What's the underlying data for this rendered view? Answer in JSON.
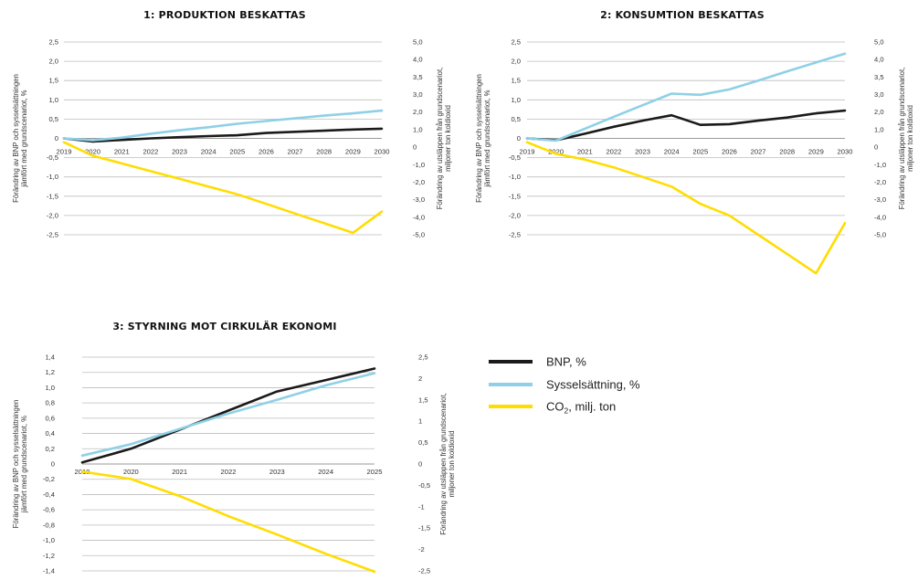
{
  "legend": [
    {
      "key": "bnp",
      "label": "BNP, %",
      "color": "#1a1a1a"
    },
    {
      "key": "syss",
      "label": "Sysselsättning, %",
      "color": "#8fd0e6"
    },
    {
      "key": "co2",
      "label_main": "CO",
      "label_sub": "2",
      "label_rest": ", milj. ton",
      "color": "#ffdd00"
    }
  ],
  "chart_data": [
    {
      "type": "line",
      "title": "1: PRODUKTION BESKATTAS",
      "ylabel_left": [
        "Förändring av BNP och sysselsättningen",
        "jämfört med grundscenariot, %"
      ],
      "ylabel_right": [
        "Förändring av utsläppen från grundscenariot,",
        "miljoner ton koldioxid"
      ],
      "x": [
        "2019",
        "2020",
        "2021",
        "2022",
        "2023",
        "2024",
        "2025",
        "2026",
        "2027",
        "2028",
        "2029",
        "2030"
      ],
      "left_ticks": [
        "2,5",
        "2,0",
        "1,5",
        "1,0",
        "0,5",
        "0",
        "-0,5",
        "-1,0",
        "-1,5",
        "-2,0",
        "-2,5"
      ],
      "right_ticks": [
        "5,0",
        "4,0",
        "3,5",
        "3,0",
        "2,0",
        "1,0",
        "0",
        "-1,0",
        "-2,0",
        "-3,0",
        "-4,0",
        "-5,0"
      ],
      "ylim_left": [
        -2.5,
        2.5
      ],
      "ylim_right": [
        -5,
        5
      ],
      "series": [
        {
          "key": "bnp",
          "axis": "left",
          "values": [
            0.0,
            -0.08,
            -0.04,
            0.0,
            0.03,
            0.06,
            0.08,
            0.14,
            0.17,
            0.2,
            0.23,
            0.25
          ]
        },
        {
          "key": "syss",
          "axis": "left",
          "values": [
            0.0,
            -0.05,
            0.02,
            0.12,
            0.21,
            0.29,
            0.38,
            0.45,
            0.52,
            0.59,
            0.65,
            0.72
          ]
        },
        {
          "key": "co2",
          "axis": "right",
          "values": [
            -0.2,
            -0.9,
            -1.3,
            -1.7,
            -2.1,
            -2.5,
            -2.9,
            -3.4,
            -3.9,
            -4.4,
            -4.9,
            -3.8
          ]
        }
      ]
    },
    {
      "type": "line",
      "title": "2: KONSUMTION BESKATTAS",
      "ylabel_left": [
        "Förändring av BNP och sysselsättningen",
        "jämfört med grundscenariot, %"
      ],
      "ylabel_right": [
        "Förändring av utsläppen från grundscenariot,",
        "miljoner ton koldioxid"
      ],
      "x": [
        "2019",
        "2020",
        "2021",
        "2022",
        "2023",
        "2024",
        "2025",
        "2026",
        "2027",
        "2028",
        "2029",
        "2030"
      ],
      "left_ticks": [
        "2,5",
        "2,0",
        "1,5",
        "1,0",
        "0,5",
        "0",
        "-0,5",
        "-1,0",
        "-1,5",
        "-2,0",
        "-2,5"
      ],
      "right_ticks": [
        "5,0",
        "4,0",
        "3,5",
        "3,0",
        "2,0",
        "1,0",
        "0",
        "-1,0",
        "-2,0",
        "-3,0",
        "-4,0",
        "-5,0"
      ],
      "ylim_left": [
        -2.5,
        2.5
      ],
      "ylim_right": [
        -5,
        5
      ],
      "series": [
        {
          "key": "bnp",
          "axis": "left",
          "values": [
            0.0,
            -0.05,
            0.12,
            0.3,
            0.46,
            0.6,
            0.35,
            0.37,
            0.46,
            0.54,
            0.65,
            0.72
          ]
        },
        {
          "key": "syss",
          "axis": "left",
          "values": [
            0.0,
            -0.06,
            0.25,
            0.56,
            0.86,
            1.16,
            1.13,
            1.27,
            1.5,
            1.74,
            1.97,
            2.2
          ]
        },
        {
          "key": "co2",
          "axis": "right",
          "values": [
            -0.2,
            -0.8,
            -1.1,
            -1.5,
            -2.0,
            -2.5,
            -3.4,
            -4.0,
            -5.0,
            -6.0,
            -7.0,
            -4.4
          ]
        }
      ]
    },
    {
      "type": "line",
      "title": "3: STYRNING MOT CIRKULÄR EKONOMI",
      "ylabel_left": [
        "Förändring av BNP och sysselsättningen",
        "jämfört med grundscenariot, %"
      ],
      "ylabel_right": [
        "Förändring av utsläppen från grundscenariot,",
        "miljoner ton koldioxid"
      ],
      "x": [
        "2019",
        "2020",
        "2021",
        "2022",
        "2023",
        "2024",
        "2025"
      ],
      "left_ticks": [
        "1,4",
        "1,2",
        "1,0",
        "0,8",
        "0,6",
        "0,4",
        "0,2",
        "0",
        "-0,2",
        "-0,4",
        "-0,6",
        "-0,8",
        "-1,0",
        "-1,2",
        "-1,4"
      ],
      "right_ticks": [
        "2,5",
        "2",
        "1,5",
        "1",
        "0,5",
        "0",
        "-0,5",
        "-1",
        "-1,5",
        "-2",
        "-2,5"
      ],
      "ylim_left": [
        -1.4,
        1.4
      ],
      "ylim_right": [
        -2.5,
        2.5
      ],
      "series": [
        {
          "key": "bnp",
          "axis": "left",
          "values": [
            0.02,
            0.2,
            0.45,
            0.7,
            0.95,
            1.1,
            1.25
          ]
        },
        {
          "key": "syss",
          "axis": "left",
          "values": [
            0.11,
            0.26,
            0.46,
            0.66,
            0.84,
            1.03,
            1.19
          ]
        },
        {
          "key": "co2",
          "axis": "right",
          "values": [
            -0.18,
            -0.35,
            -0.75,
            -1.22,
            -1.65,
            -2.1,
            -2.52
          ]
        }
      ]
    }
  ]
}
